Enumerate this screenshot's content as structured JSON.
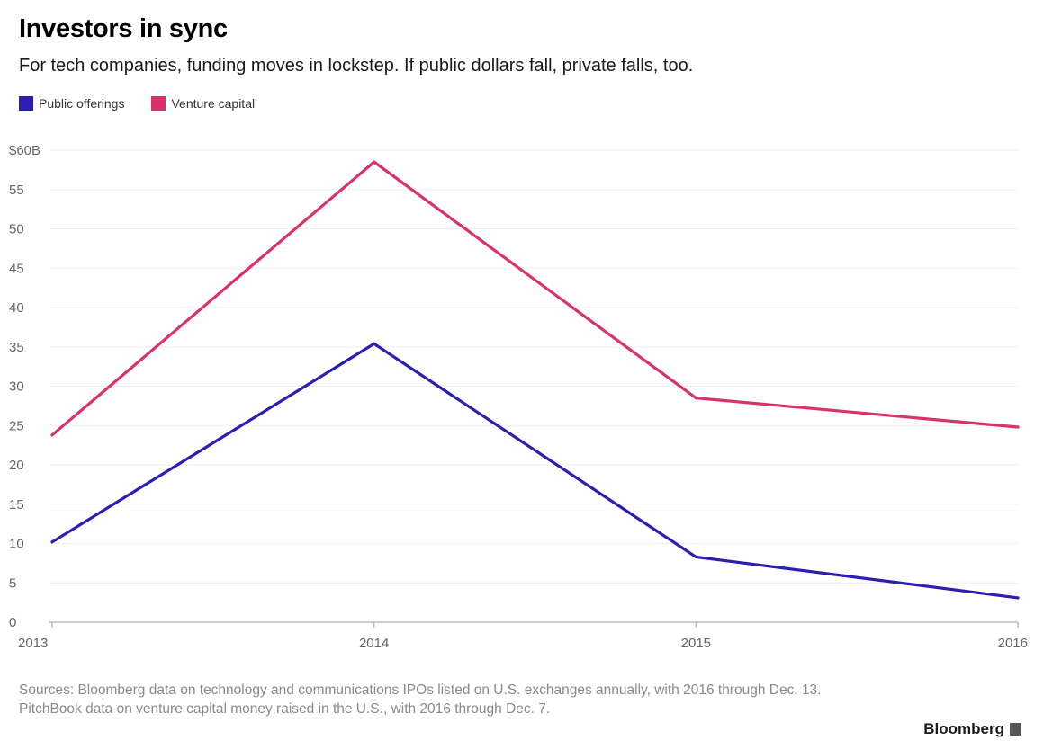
{
  "header": {
    "title": "Investors in sync",
    "subtitle": "For tech companies, funding moves in lockstep. If public dollars fall, private falls, too."
  },
  "colors": {
    "public": "#2a1fb0",
    "venture": "#d9326a",
    "grid": "#eeeeee",
    "axis": "#bbbbbb"
  },
  "chart_data": {
    "type": "line",
    "title": "Investors in sync",
    "subtitle": "For tech companies, funding moves in lockstep. If public dollars fall, private falls, too.",
    "x": [
      2013,
      2014,
      2015,
      2016
    ],
    "x_tick_labels": [
      "2013",
      "2014",
      "2015",
      "2016"
    ],
    "y_tick_values": [
      0,
      5,
      10,
      15,
      20,
      25,
      30,
      35,
      40,
      45,
      50,
      55,
      60
    ],
    "y_tick_labels": [
      "0",
      "5",
      "10",
      "15",
      "20",
      "25",
      "30",
      "35",
      "40",
      "45",
      "50",
      "55",
      "$60B"
    ],
    "ylim": [
      0,
      60
    ],
    "xlim": [
      2013,
      2016
    ],
    "grid": true,
    "legend_position": "top-left",
    "series": [
      {
        "name": "Public offerings",
        "values": [
          10.2,
          35.4,
          8.3,
          3.1
        ],
        "color": "#2a1fb0"
      },
      {
        "name": "Venture capital",
        "values": [
          23.8,
          58.5,
          28.5,
          24.8
        ],
        "color": "#d9326a"
      }
    ]
  },
  "footer": {
    "source": "Sources: Bloomberg data on technology and communications IPOs listed on U.S. exchanges annually, with 2016 through Dec. 13. PitchBook data on venture capital money raised in the U.S., with 2016 through Dec. 7.",
    "brand": "Bloomberg"
  }
}
